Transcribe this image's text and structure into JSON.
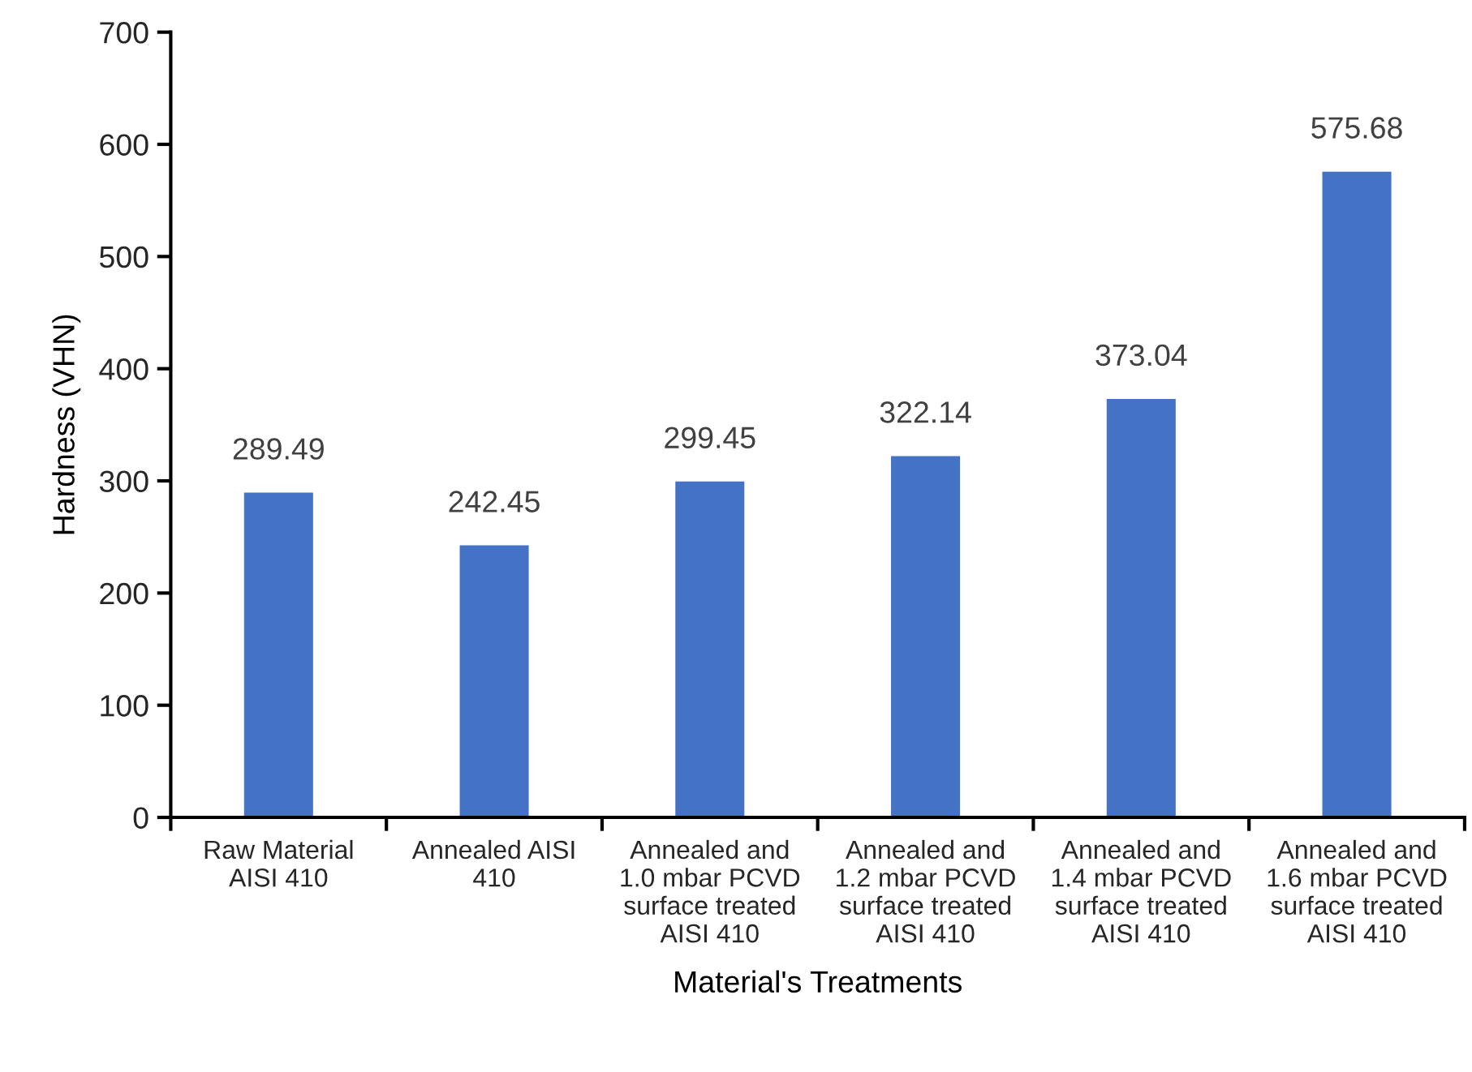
{
  "chart_data": {
    "type": "bar",
    "xlabel": "Material's Treatments",
    "ylabel": "Hardness (VHN)",
    "categories": [
      "Raw Material\nAISI 410",
      "Annealed AISI\n410",
      "Annealed and\n1.0 mbar PCVD\nsurface treated\nAISI 410",
      "Annealed and\n1.2 mbar PCVD\nsurface treated\nAISI 410",
      "Annealed and\n1.4 mbar PCVD\nsurface treated\nAISI 410",
      "Annealed and\n1.6 mbar PCVD\nsurface treated\nAISI 410"
    ],
    "values": [
      289.49,
      242.45,
      299.45,
      322.14,
      373.04,
      575.68
    ],
    "color": "#4472c4",
    "ylim": [
      0,
      700
    ],
    "yticks": [
      0,
      100,
      200,
      300,
      400,
      500,
      600,
      700
    ],
    "data_labels": true,
    "grid": false,
    "legend": false
  }
}
